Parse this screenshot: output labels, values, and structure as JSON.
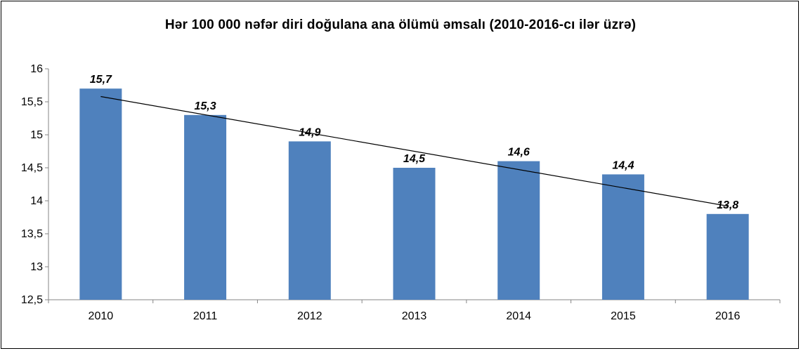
{
  "chart_data": {
    "type": "bar",
    "title": "Hər 100 000 nəfər diri doğulana ana ölümü əmsalı (2010-2016-cı ilər üzrə)",
    "xlabel": "",
    "ylabel": "",
    "categories": [
      "2010",
      "2011",
      "2012",
      "2013",
      "2014",
      "2015",
      "2016"
    ],
    "values": [
      15.7,
      15.3,
      14.9,
      14.5,
      14.6,
      14.4,
      13.8
    ],
    "data_labels": [
      "15,7",
      "15,3",
      "14,9",
      "14,5",
      "14,6",
      "14,4",
      "13,8"
    ],
    "ylim": [
      12.5,
      16
    ],
    "yticks": [
      12.5,
      13,
      13.5,
      14,
      14.5,
      15,
      15.5,
      16
    ],
    "ytick_labels": [
      "12,5",
      "13",
      "13,5",
      "14",
      "14,5",
      "15",
      "15,5",
      "16"
    ],
    "trendline": {
      "type": "linear",
      "start": 15.58,
      "end": 13.92
    },
    "grid": false,
    "legend": "none",
    "colors": {
      "bar": "#4F81BD",
      "trendline": "#000000",
      "axis": "#868686"
    }
  }
}
